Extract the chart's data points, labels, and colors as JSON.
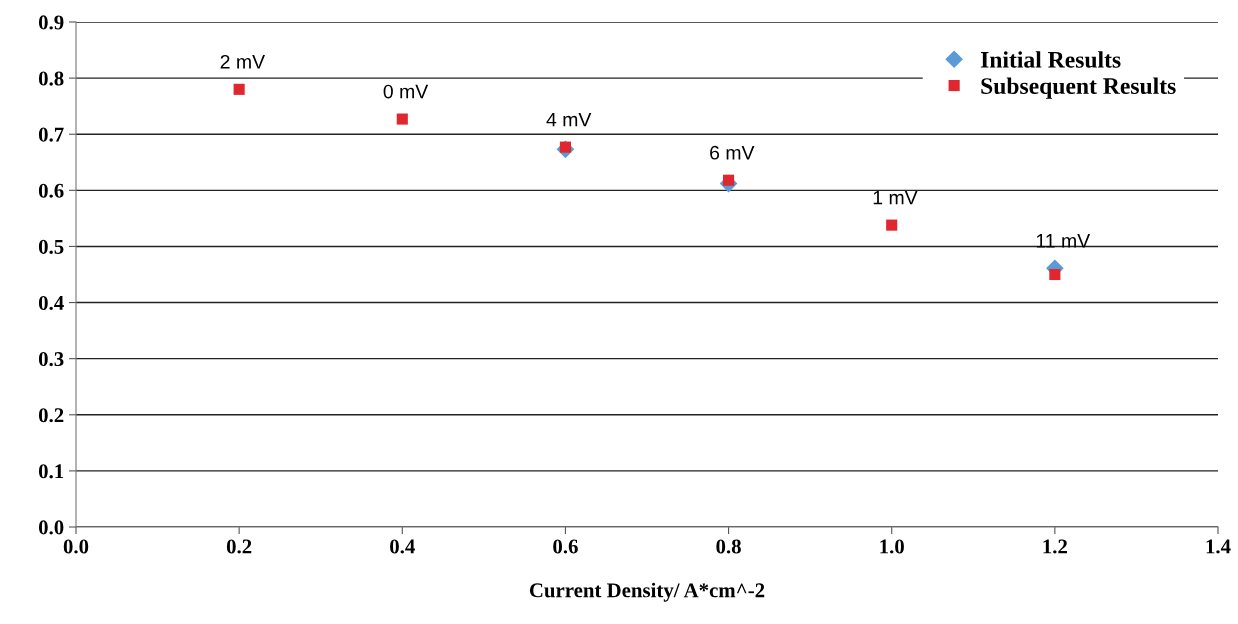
{
  "chart_data": {
    "type": "scatter",
    "xlabel": "Current Density/ A*cm^-2",
    "x": [
      0.2,
      0.4,
      0.6,
      0.8,
      1.0,
      1.2
    ],
    "series": [
      {
        "name": "Initial Results",
        "color": "#5b9bd5",
        "marker": "diamond",
        "values": [
          null,
          null,
          0.673,
          0.612,
          null,
          0.461
        ]
      },
      {
        "name": "Subsequent Results",
        "color": "#e0262f",
        "marker": "square",
        "values": [
          0.78,
          0.727,
          0.677,
          0.618,
          0.538,
          0.45
        ]
      }
    ],
    "annotations": [
      {
        "text": "2 mV",
        "x": 0.2,
        "y": 0.78
      },
      {
        "text": "0 mV",
        "x": 0.4,
        "y": 0.727
      },
      {
        "text": "4 mV",
        "x": 0.6,
        "y": 0.677
      },
      {
        "text": "6 mV",
        "x": 0.8,
        "y": 0.618
      },
      {
        "text": "1 mV",
        "x": 1.0,
        "y": 0.538
      },
      {
        "text": "11 mV",
        "x": 1.2,
        "y": 0.461
      }
    ],
    "xlim": [
      0.0,
      1.4
    ],
    "xticks": [
      {
        "value": 0.0,
        "label": "0.0"
      },
      0.2,
      0.4,
      0.6,
      0.8,
      {
        "value": 1.0,
        "label": "1.0"
      },
      1.2,
      1.4
    ],
    "ylim": [
      0.0,
      0.9
    ],
    "yticks": [
      {
        "value": 0.0,
        "label": "0.0"
      },
      0.1,
      0.2,
      0.3,
      0.4,
      0.5,
      0.6,
      0.7,
      0.8,
      0.9
    ],
    "grid": "y",
    "legend": "top right"
  }
}
